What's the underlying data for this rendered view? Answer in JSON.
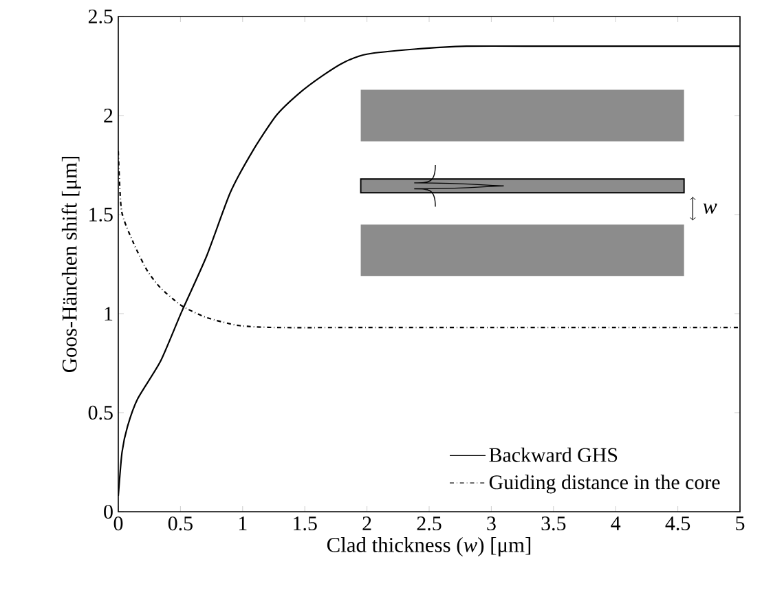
{
  "chart_data": {
    "type": "line",
    "xlabel": "Clad thickness (*w*) [μm]",
    "ylabel": "Goos-Hänchen shift [μm]",
    "xlim": [
      0,
      5
    ],
    "ylim": [
      0,
      2.5
    ],
    "xticks": [
      0,
      0.5,
      1,
      1.5,
      2,
      2.5,
      3,
      3.5,
      4,
      4.5,
      5
    ],
    "yticks": [
      0,
      0.5,
      1,
      1.5,
      2,
      2.5
    ],
    "legend": "bottom right",
    "grid": false,
    "annotations": [
      "w"
    ],
    "series": [
      {
        "name": "Backward GHS",
        "color": "#000000",
        "line_style": "solid",
        "x": [
          0,
          0.03,
          0.074,
          0.156,
          0.34,
          0.51,
          0.71,
          0.9,
          1.08,
          1.27,
          1.45,
          1.64,
          1.82,
          2.0,
          2.38,
          2.8,
          3.5,
          4.0,
          5.0
        ],
        "values": [
          0.08,
          0.3,
          0.43,
          0.57,
          0.76,
          1.01,
          1.29,
          1.61,
          1.82,
          2.0,
          2.11,
          2.2,
          2.27,
          2.31,
          2.335,
          2.35,
          2.35,
          2.35,
          2.35
        ]
      },
      {
        "name": "Guiding distance in the core",
        "color": "#000000",
        "line_style": "dashdot",
        "x": [
          0,
          0.026,
          0.12,
          0.23,
          0.34,
          0.51,
          0.71,
          0.97,
          1.27,
          2.0,
          3.0,
          4.0,
          5.0
        ],
        "values": [
          1.82,
          1.52,
          1.36,
          1.22,
          1.13,
          1.04,
          0.98,
          0.94,
          0.93,
          0.93,
          0.93,
          0.93,
          0.93
        ]
      }
    ]
  }
}
